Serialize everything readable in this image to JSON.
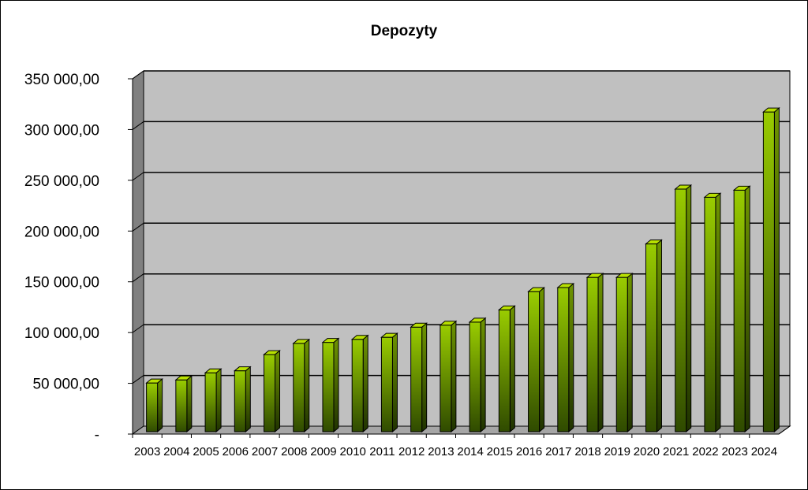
{
  "chart_data": {
    "type": "bar",
    "title": "Depozyty",
    "xlabel": "",
    "ylabel": "",
    "categories": [
      "2003",
      "2004",
      "2005",
      "2006",
      "2007",
      "2008",
      "2009",
      "2010",
      "2011",
      "2012",
      "2013",
      "2014",
      "2015",
      "2016",
      "2017",
      "2018",
      "2019",
      "2020",
      "2021",
      "2022",
      "2023",
      "2024"
    ],
    "values": [
      48000,
      51000,
      58000,
      60000,
      76000,
      87000,
      88000,
      91000,
      93000,
      103000,
      105000,
      108000,
      120000,
      138000,
      142000,
      152000,
      152000,
      185000,
      239000,
      231000,
      238000,
      315000
    ],
    "ylim": [
      0,
      350000
    ],
    "yticks": [
      0,
      50000,
      100000,
      150000,
      200000,
      250000,
      300000,
      350000
    ],
    "ytick_labels": [
      "-",
      "50 000,00",
      "100 000,00",
      "150 000,00",
      "200 000,00",
      "250 000,00",
      "300 000,00",
      "350 000,00"
    ],
    "grid": true,
    "legend": "none",
    "colors": {
      "bar_top": "#99cc00",
      "bar_bottom": "#2f4a00",
      "plot_background": "#c0c0c0",
      "side_wall": "#808080",
      "floor": "#a6a6a6"
    }
  }
}
